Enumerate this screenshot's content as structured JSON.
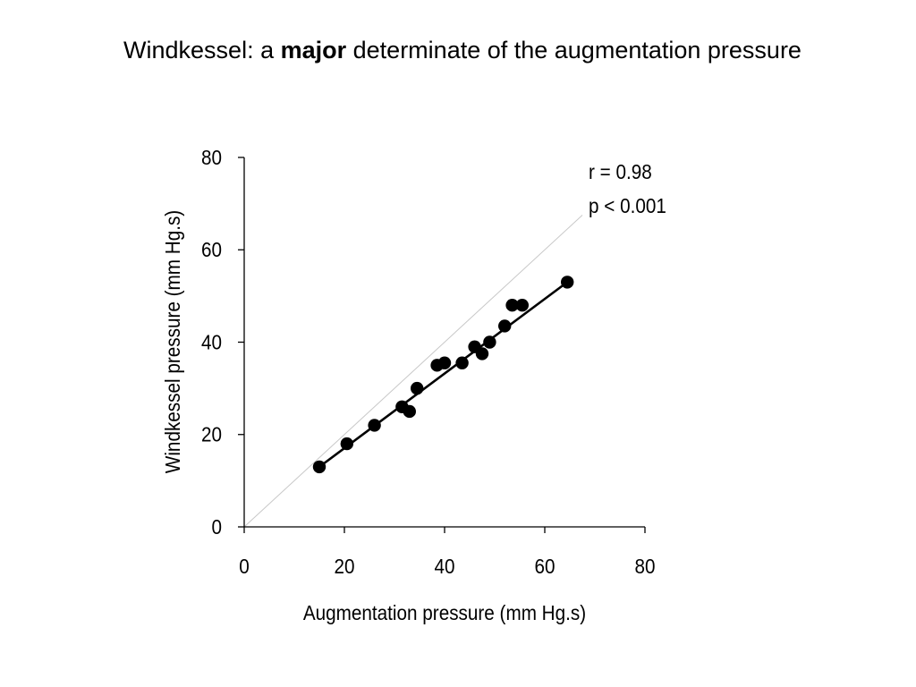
{
  "slide": {
    "title_prefix": "Windkessel: a ",
    "title_bold": "major",
    "title_suffix": " determinate of the augmentation pressure"
  },
  "chart_data": {
    "type": "scatter",
    "xlabel": "Augmentation pressure (mm Hg.s)",
    "ylabel": "Windkessel pressure (mm Hg.s)",
    "xlim": [
      0,
      80
    ],
    "ylim": [
      0,
      80
    ],
    "xticks": [
      "0",
      "20",
      "40",
      "60",
      "80"
    ],
    "yticks": [
      "0",
      "20",
      "40",
      "60",
      "80"
    ],
    "grid": false,
    "points": [
      {
        "x": 15,
        "y": 13
      },
      {
        "x": 20.5,
        "y": 18
      },
      {
        "x": 26,
        "y": 22
      },
      {
        "x": 31.5,
        "y": 26
      },
      {
        "x": 33,
        "y": 25
      },
      {
        "x": 34.5,
        "y": 30
      },
      {
        "x": 38.5,
        "y": 35
      },
      {
        "x": 40,
        "y": 35.5
      },
      {
        "x": 43.5,
        "y": 35.5
      },
      {
        "x": 46,
        "y": 39
      },
      {
        "x": 47.5,
        "y": 37.5
      },
      {
        "x": 49,
        "y": 40
      },
      {
        "x": 52,
        "y": 43.5
      },
      {
        "x": 53.5,
        "y": 48
      },
      {
        "x": 55.5,
        "y": 48
      },
      {
        "x": 64.5,
        "y": 53
      }
    ],
    "regression_line": {
      "x": [
        15,
        64.5
      ],
      "y": [
        13,
        53
      ]
    },
    "identity_line": {
      "x": [
        0,
        67.5
      ],
      "y": [
        0,
        67.5
      ]
    },
    "annotations": [
      "r = 0.98",
      "p < 0.001"
    ],
    "colors": {
      "points": "#000000",
      "regression": "#000000",
      "identity": "#c8c8c8",
      "axes": "#000000"
    }
  }
}
